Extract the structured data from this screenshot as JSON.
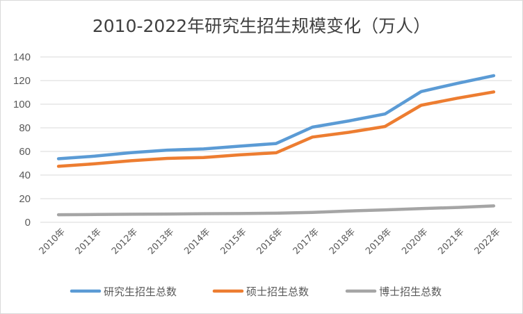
{
  "chart_data": {
    "type": "line",
    "title": "2010-2022年研究生招生规模变化（万人）",
    "categories": [
      "2010年",
      "2011年",
      "2012年",
      "2013年",
      "2014年",
      "2015年",
      "2016年",
      "2017年",
      "2018年",
      "2019年",
      "2020年",
      "2021年",
      "2022年"
    ],
    "ylim": [
      0,
      140
    ],
    "yticks": [
      "0",
      "20",
      "40",
      "60",
      "80",
      "100",
      "120",
      "140"
    ],
    "grid": true,
    "legend_position": "bottom",
    "series": [
      {
        "name": "研究生招生总数",
        "color": "#5b9bd5",
        "values": [
          53.8,
          56.0,
          59.0,
          61.1,
          62.1,
          64.5,
          66.7,
          80.6,
          85.8,
          91.7,
          110.7,
          117.7,
          124.2
        ]
      },
      {
        "name": "硕士招生总数",
        "color": "#ed7d31",
        "values": [
          47.4,
          49.5,
          52.1,
          54.1,
          54.9,
          57.1,
          58.9,
          72.2,
          76.2,
          81.1,
          99.1,
          105.1,
          110.4
        ]
      },
      {
        "name": "博士招生总数",
        "color": "#a5a5a5",
        "values": [
          6.4,
          6.6,
          6.8,
          7.0,
          7.3,
          7.4,
          7.7,
          8.4,
          9.6,
          10.5,
          11.6,
          12.6,
          13.9
        ]
      }
    ]
  }
}
